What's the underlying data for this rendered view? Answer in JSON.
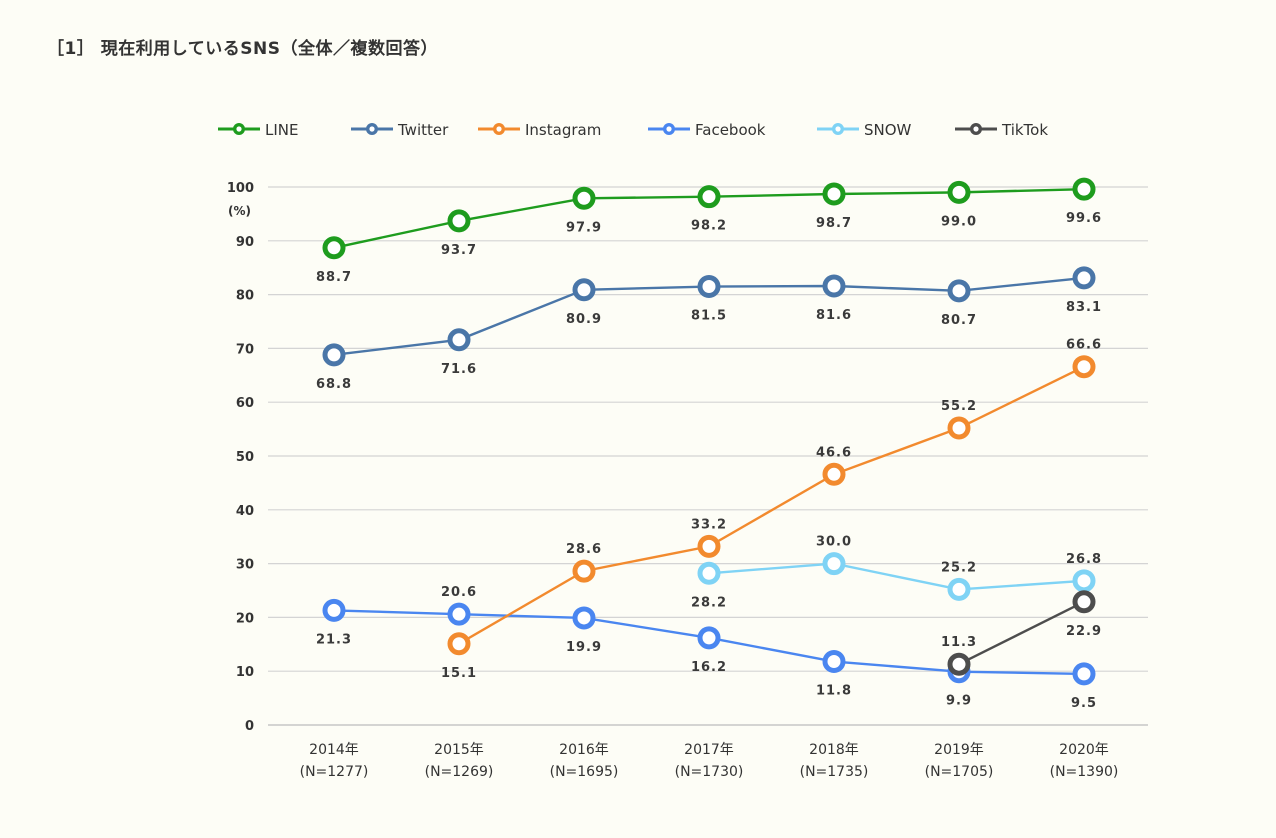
{
  "heading": "［1］ 現在利用しているSNS（全体／複数回答）",
  "chart_data": {
    "type": "line",
    "unit_label": "(%)",
    "ylim": [
      0,
      100
    ],
    "y_ticks": [
      0,
      10,
      20,
      30,
      40,
      50,
      60,
      70,
      80,
      90,
      100
    ],
    "grid": true,
    "legend_position": "top",
    "categories": [
      [
        "2014年",
        "(N=1277)"
      ],
      [
        "2015年",
        "(N=1269)"
      ],
      [
        "2016年",
        "(N=1695)"
      ],
      [
        "2017年",
        "(N=1730)"
      ],
      [
        "2018年",
        "(N=1735)"
      ],
      [
        "2019年",
        "(N=1705)"
      ],
      [
        "2020年",
        "(N=1390)"
      ]
    ],
    "series": [
      {
        "name": "LINE",
        "color": "#1e9c1e",
        "values": [
          88.7,
          93.7,
          97.9,
          98.2,
          98.7,
          99.0,
          99.6
        ],
        "label_pos": [
          "below",
          "below",
          "below",
          "below",
          "below",
          "below",
          "below"
        ]
      },
      {
        "name": "Twitter",
        "color": "#4a76a8",
        "values": [
          68.8,
          71.6,
          80.9,
          81.5,
          81.6,
          80.7,
          83.1
        ],
        "label_pos": [
          "below",
          "below",
          "below",
          "below",
          "below",
          "below",
          "below"
        ]
      },
      {
        "name": "Instagram",
        "color": "#f28a2e",
        "values": [
          null,
          15.1,
          28.6,
          33.2,
          46.6,
          55.2,
          66.6
        ],
        "label_pos": [
          null,
          "below",
          "above",
          "above",
          "above",
          "above",
          "above"
        ]
      },
      {
        "name": "Facebook",
        "color": "#4a86f0",
        "values": [
          21.3,
          20.6,
          19.9,
          16.2,
          11.8,
          9.9,
          9.5
        ],
        "label_pos": [
          "below",
          "above",
          "below",
          "below",
          "below",
          "below",
          "below"
        ]
      },
      {
        "name": "SNOW",
        "color": "#7fd3f5",
        "values": [
          null,
          null,
          null,
          28.2,
          30.0,
          25.2,
          26.8
        ],
        "label_pos": [
          null,
          null,
          null,
          "below",
          "above",
          "above",
          "above"
        ]
      },
      {
        "name": "TikTok",
        "color": "#4d4d4d",
        "values": [
          null,
          null,
          null,
          null,
          null,
          11.3,
          22.9
        ],
        "label_pos": [
          null,
          null,
          null,
          null,
          null,
          "above",
          "below"
        ]
      }
    ]
  }
}
